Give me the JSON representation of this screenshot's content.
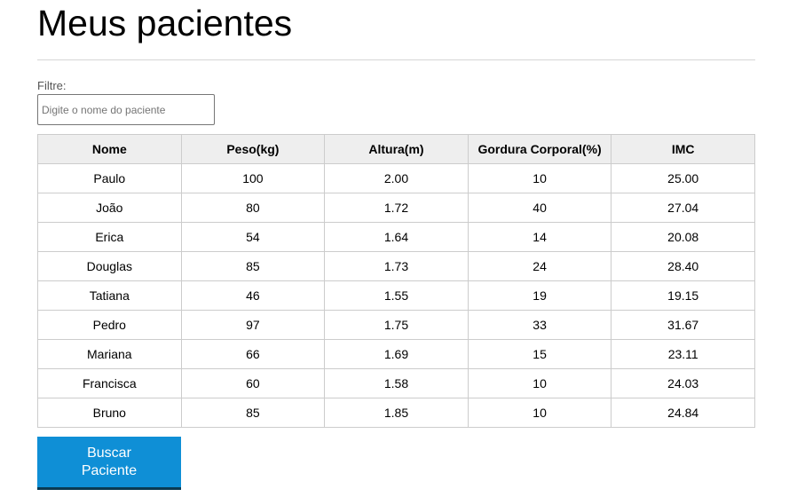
{
  "header": {
    "title": "Meus pacientes"
  },
  "filter": {
    "label": "Filtre:",
    "value": "",
    "placeholder": "Digite o nome do paciente"
  },
  "table": {
    "columns": [
      "Nome",
      "Peso(kg)",
      "Altura(m)",
      "Gordura Corporal(%)",
      "IMC"
    ],
    "rows": [
      [
        "Paulo",
        "100",
        "2.00",
        "10",
        "25.00"
      ],
      [
        "João",
        "80",
        "1.72",
        "40",
        "27.04"
      ],
      [
        "Erica",
        "54",
        "1.64",
        "14",
        "20.08"
      ],
      [
        "Douglas",
        "85",
        "1.73",
        "24",
        "28.40"
      ],
      [
        "Tatiana",
        "46",
        "1.55",
        "19",
        "19.15"
      ],
      [
        "Pedro",
        "97",
        "1.75",
        "33",
        "31.67"
      ],
      [
        "Mariana",
        "66",
        "1.69",
        "15",
        "23.11"
      ],
      [
        "Francisca",
        "60",
        "1.58",
        "10",
        "24.03"
      ],
      [
        "Bruno",
        "85",
        "1.85",
        "10",
        "24.84"
      ]
    ]
  },
  "actions": {
    "search_label": "Buscar Paciente"
  },
  "colors": {
    "button_background": "#0f8fd6",
    "button_text": "#ffffff",
    "table_header_background": "#eeeeee",
    "table_border": "#cccccc"
  }
}
